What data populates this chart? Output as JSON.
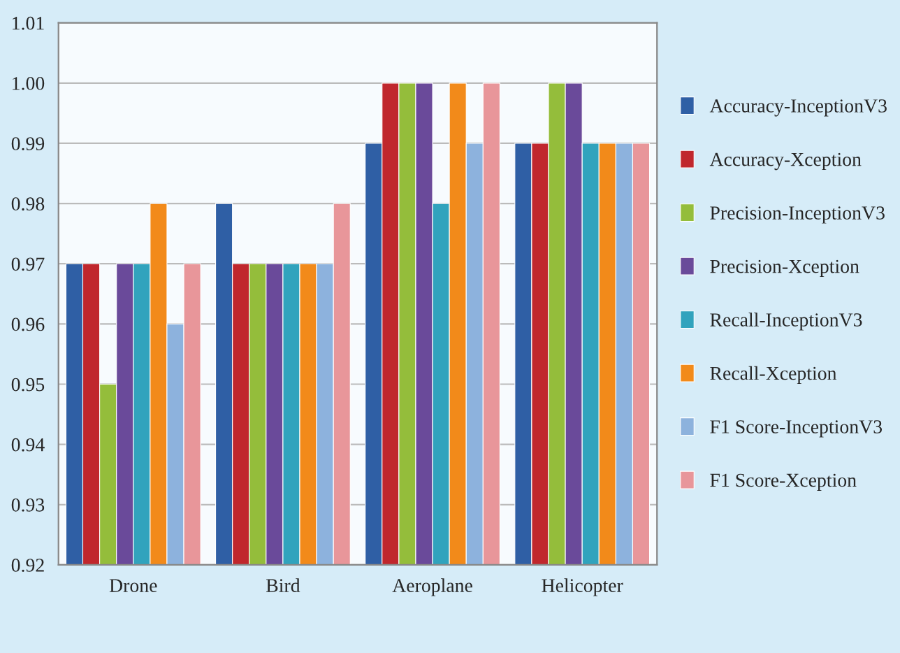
{
  "chart_data": {
    "type": "bar",
    "categories": [
      "Drone",
      "Bird",
      "Aeroplane",
      "Helicopter"
    ],
    "series": [
      {
        "name": "Accuracy-InceptionV3",
        "color": "#2f5fa5",
        "values": [
          0.97,
          0.98,
          0.99,
          0.99
        ]
      },
      {
        "name": "Accuracy-Xception",
        "color": "#c0272d",
        "values": [
          0.97,
          0.97,
          1.0,
          0.99
        ]
      },
      {
        "name": "Precision-InceptionV3",
        "color": "#94bd3b",
        "values": [
          0.95,
          0.97,
          1.0,
          1.0
        ]
      },
      {
        "name": "Precision-Xception",
        "color": "#6a4a9a",
        "values": [
          0.97,
          0.97,
          1.0,
          1.0
        ]
      },
      {
        "name": "Recall-InceptionV3",
        "color": "#31a3bd",
        "values": [
          0.97,
          0.97,
          0.98,
          0.99
        ]
      },
      {
        "name": "Recall-Xception",
        "color": "#f28a1a",
        "values": [
          0.98,
          0.97,
          1.0,
          0.99
        ]
      },
      {
        "name": "F1 Score-InceptionV3",
        "color": "#8db2dd",
        "values": [
          0.96,
          0.97,
          0.99,
          0.99
        ]
      },
      {
        "name": "F1 Score-Xception",
        "color": "#e8969a",
        "values": [
          0.97,
          0.98,
          1.0,
          0.99
        ]
      }
    ],
    "ylim": [
      0.92,
      1.01
    ],
    "yticks": [
      {
        "value": 0.92,
        "label": "0.92"
      },
      {
        "value": 0.93,
        "label": "0.93"
      },
      {
        "value": 0.94,
        "label": "0.94"
      },
      {
        "value": 0.95,
        "label": "0.95"
      },
      {
        "value": 0.96,
        "label": "0.96"
      },
      {
        "value": 0.97,
        "label": "0.97"
      },
      {
        "value": 0.98,
        "label": "0.98"
      },
      {
        "value": 0.99,
        "label": "0.99"
      },
      {
        "value": 1.0,
        "label": "1.00"
      },
      {
        "value": 1.01,
        "label": "1.01"
      }
    ],
    "grid": "y",
    "legend": "right"
  }
}
